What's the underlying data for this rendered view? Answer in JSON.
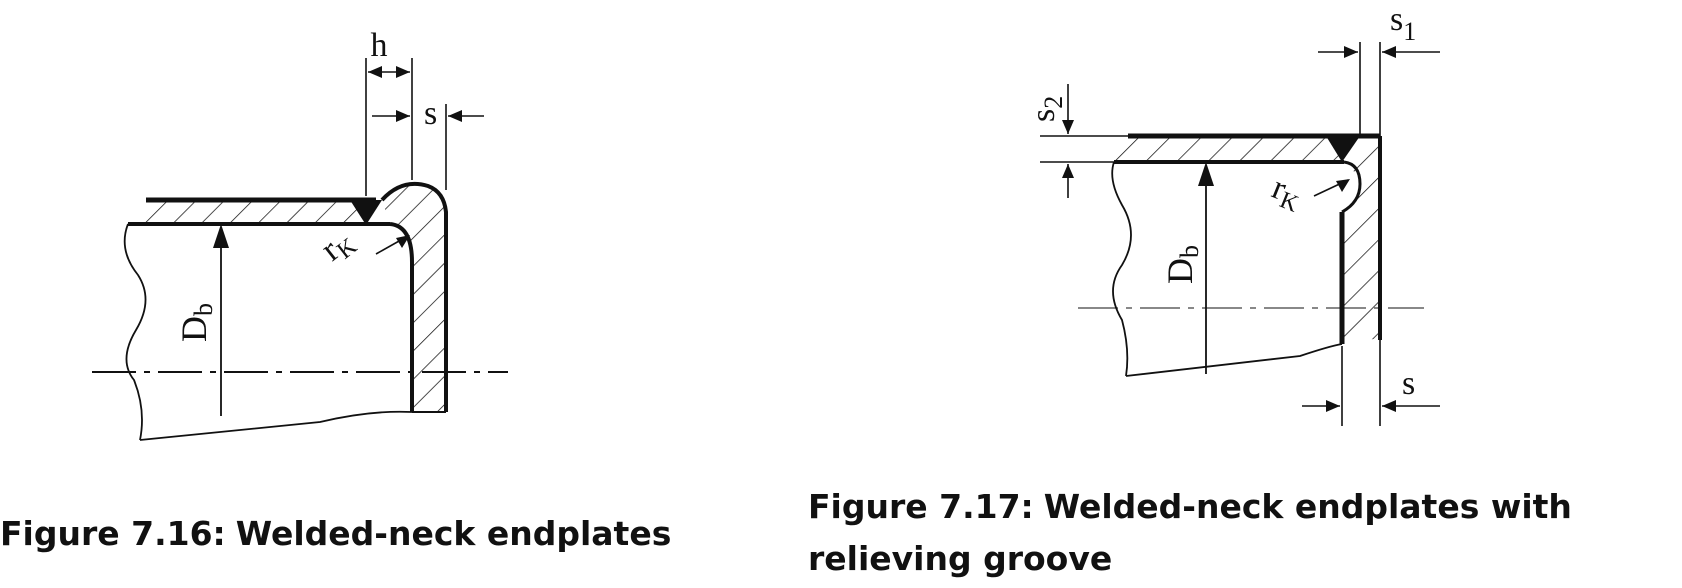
{
  "figure_left": {
    "caption_label": "Figure 7.16:",
    "caption_title": "Welded-neck endplates",
    "symbols": {
      "h": "h",
      "s": "s",
      "r": "r",
      "r_sub": "K",
      "d": "D",
      "d_sub": "b"
    }
  },
  "figure_right": {
    "caption_label": "Figure 7.17:",
    "caption_title": "Welded-neck endplates with relieving groove",
    "symbols": {
      "s1": "s",
      "s1_sub": "1",
      "s2": "s",
      "s2_sub": "2",
      "s": "s",
      "r": "r",
      "r_sub": "K",
      "d": "D",
      "d_sub": "b"
    }
  },
  "colors": {
    "ink": "#111111",
    "background": "#ffffff"
  }
}
